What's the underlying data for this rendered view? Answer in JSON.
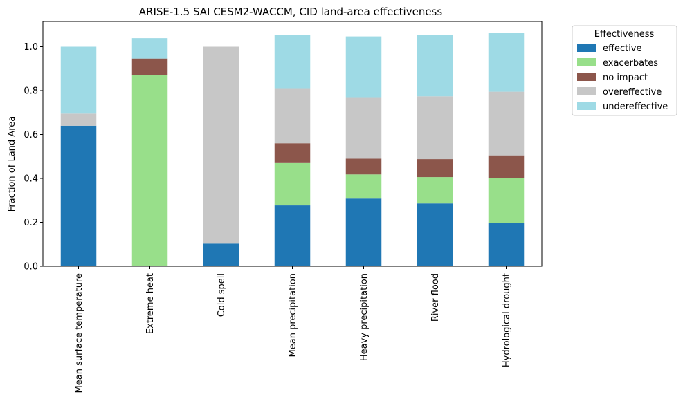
{
  "chart_data": {
    "type": "bar",
    "stacked": true,
    "title": "ARISE-1.5 SAI CESM2-WACCM, CID land-area effectiveness",
    "xlabel": "",
    "ylabel": "Fraction of Land Area",
    "ylim": [
      0,
      1.115
    ],
    "yticks": [
      "0.0",
      "0.2",
      "0.4",
      "0.6",
      "0.8",
      "1.0"
    ],
    "categories": [
      "Mean surface temperature",
      "Extreme heat",
      "Cold spell",
      "Mean precipitation",
      "Heavy precipitation",
      "River flood",
      "Hydrological drought"
    ],
    "legend": {
      "title": "Effectiveness",
      "placement": "outside-top-right"
    },
    "series": [
      {
        "name": "effective",
        "color": "#1f77b4",
        "values": [
          0.64,
          0.003,
          0.103,
          0.277,
          0.308,
          0.286,
          0.198
        ]
      },
      {
        "name": "exacerbates",
        "color": "#98df8a",
        "values": [
          0.0,
          0.868,
          0.0,
          0.196,
          0.11,
          0.12,
          0.202
        ]
      },
      {
        "name": "no impact",
        "color": "#8c564b",
        "values": [
          0.0,
          0.075,
          0.0,
          0.087,
          0.072,
          0.082,
          0.105
        ]
      },
      {
        "name": "overeffective",
        "color": "#c7c7c7",
        "values": [
          0.055,
          0.0,
          0.897,
          0.251,
          0.28,
          0.286,
          0.29
        ]
      },
      {
        "name": "undereffective",
        "color": "#9edae5",
        "values": [
          0.305,
          0.093,
          0.0,
          0.243,
          0.277,
          0.278,
          0.267
        ]
      }
    ]
  }
}
